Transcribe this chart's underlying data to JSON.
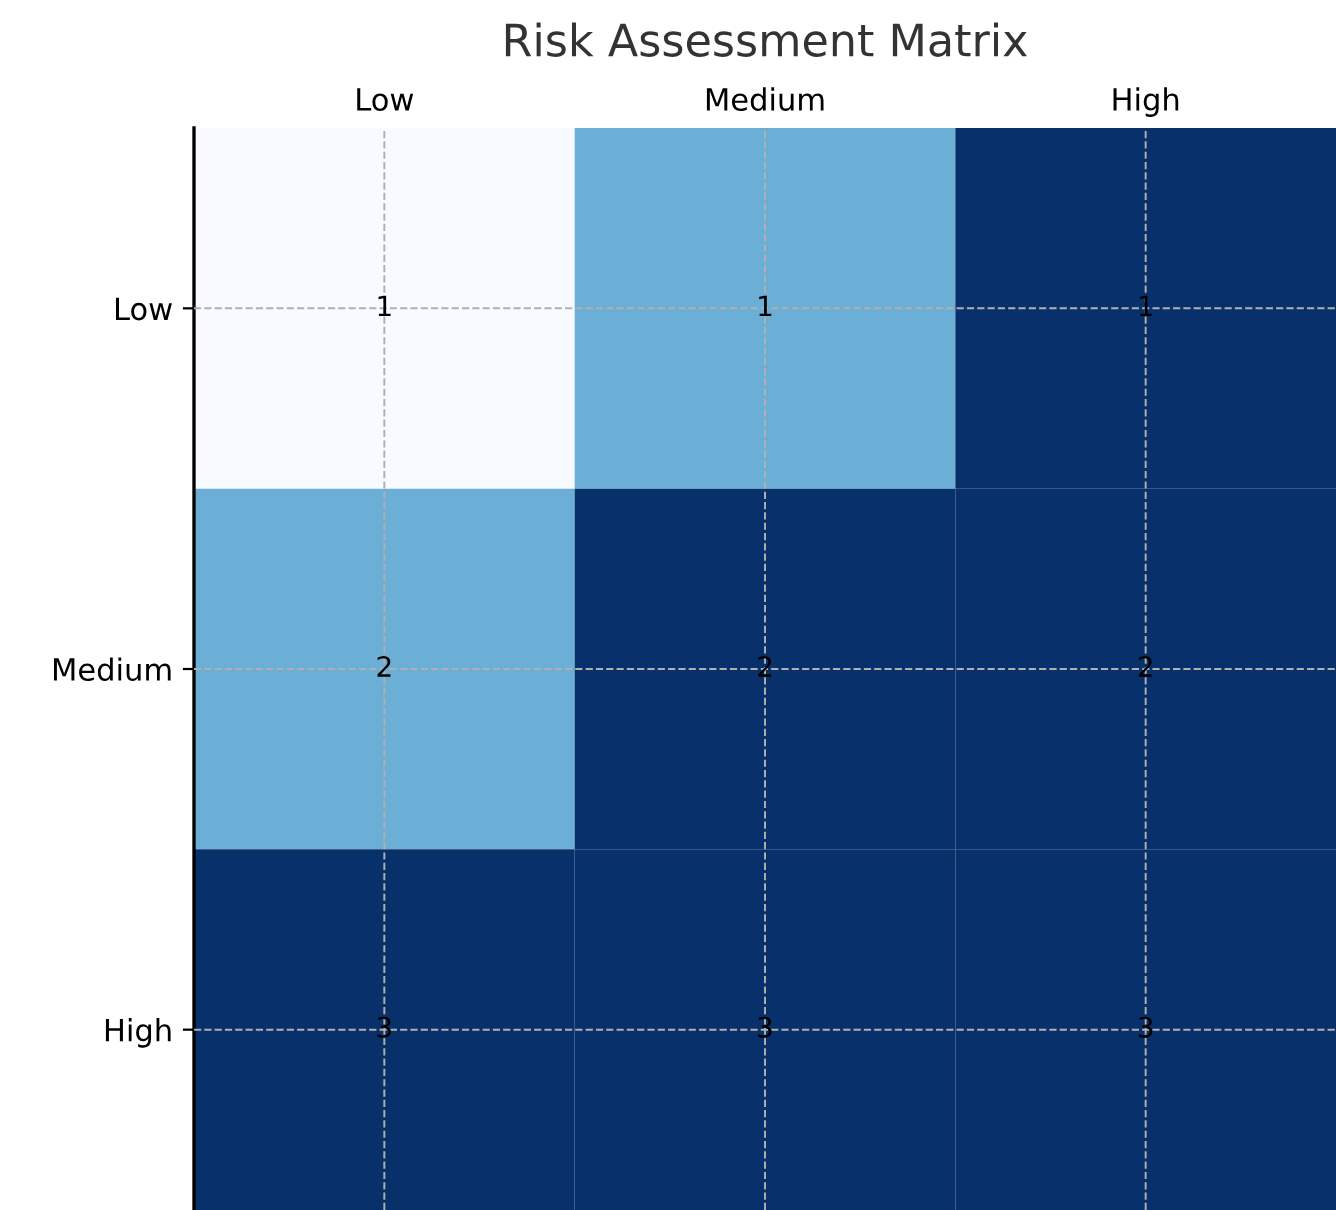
{
  "chart_data": {
    "type": "heatmap",
    "title": "Risk Assessment Matrix",
    "categories": [
      "Low",
      "Medium",
      "High"
    ],
    "y_categories": [
      "Low",
      "Medium",
      "High"
    ],
    "cells": [
      [
        1,
        1,
        1
      ],
      [
        2,
        2,
        2
      ],
      [
        3,
        3,
        3
      ]
    ],
    "colors": [
      [
        "#f7fbff",
        "#6baed6",
        "#08306b"
      ],
      [
        "#6baed6",
        "#08306b",
        "#08306b"
      ],
      [
        "#08306b",
        "#08306b",
        "#08306b"
      ]
    ],
    "data_labels": true,
    "grid": true
  }
}
